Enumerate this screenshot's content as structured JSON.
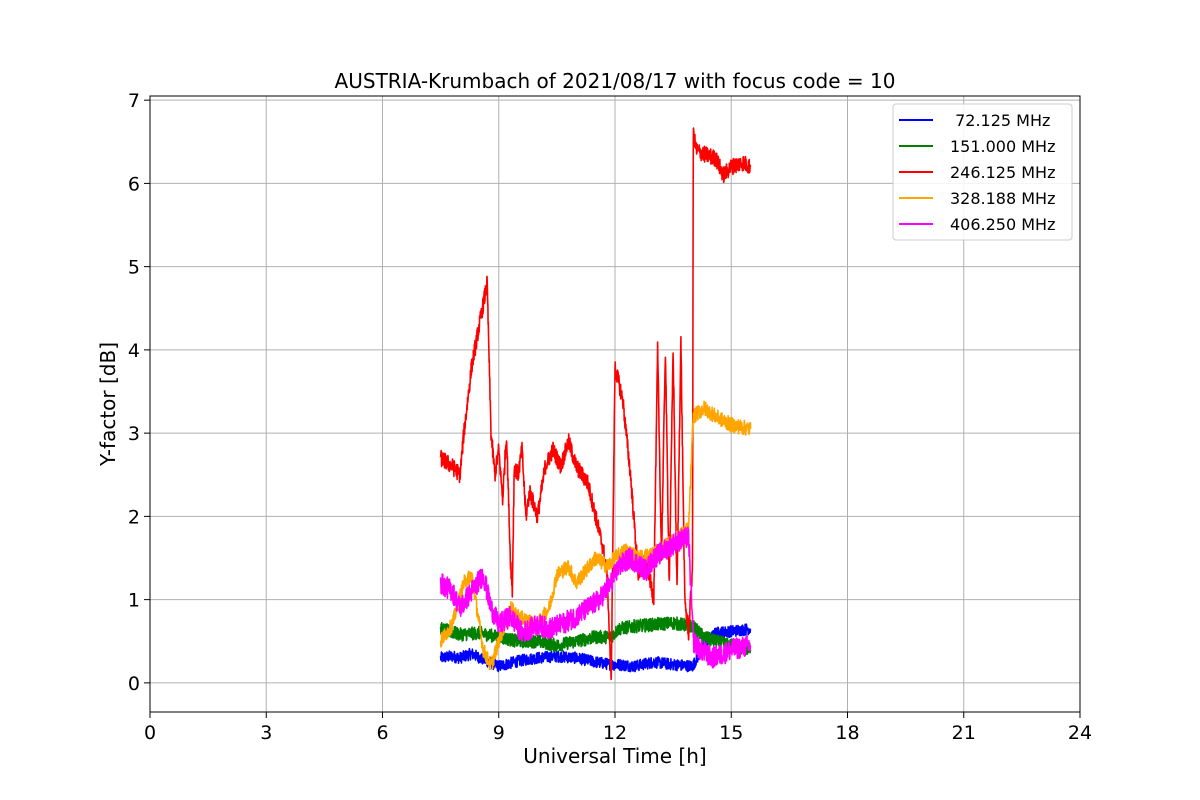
{
  "chart_data": {
    "type": "line",
    "title": "AUSTRIA-Krumbach of 2021/08/17 with focus code = 10",
    "xlabel": "Universal Time [h]",
    "ylabel": "Y-factor [dB]",
    "xlim": [
      0,
      24
    ],
    "ylim": [
      -0.35,
      7.05
    ],
    "xticks": [
      0,
      3,
      6,
      9,
      12,
      15,
      18,
      21,
      24
    ],
    "yticks": [
      0,
      1,
      2,
      3,
      4,
      5,
      6,
      7
    ],
    "grid": true,
    "legend_position": "top-right",
    "series": [
      {
        "name": " 72.125 MHz",
        "color": "#0000ff",
        "noise": 0.07,
        "x": [
          7.5,
          7.8,
          8.0,
          8.3,
          8.6,
          9.0,
          9.4,
          9.7,
          10.0,
          10.5,
          11.0,
          11.5,
          11.9,
          12.1,
          12.5,
          13.0,
          13.5,
          14.0,
          14.3,
          14.6,
          15.0,
          15.5
        ],
        "y": [
          0.3,
          0.32,
          0.3,
          0.35,
          0.28,
          0.2,
          0.25,
          0.28,
          0.3,
          0.32,
          0.3,
          0.25,
          0.22,
          0.22,
          0.2,
          0.25,
          0.22,
          0.2,
          0.45,
          0.6,
          0.62,
          0.65
        ]
      },
      {
        "name": "151.000 MHz",
        "color": "#008000",
        "noise": 0.08,
        "x": [
          7.5,
          8.0,
          8.5,
          9.0,
          9.5,
          10.0,
          10.5,
          11.0,
          11.5,
          11.9,
          12.1,
          12.5,
          13.0,
          13.5,
          14.0,
          14.3,
          14.6,
          15.0,
          15.5
        ],
        "y": [
          0.65,
          0.58,
          0.6,
          0.55,
          0.5,
          0.5,
          0.45,
          0.5,
          0.55,
          0.55,
          0.65,
          0.68,
          0.7,
          0.72,
          0.68,
          0.55,
          0.5,
          0.45,
          0.4
        ]
      },
      {
        "name": "246.125 MHz",
        "color": "#ff0000",
        "noise": 0.1,
        "x": [
          7.5,
          7.8,
          8.0,
          8.1,
          8.3,
          8.5,
          8.7,
          8.8,
          8.9,
          9.0,
          9.1,
          9.2,
          9.3,
          9.35,
          9.4,
          9.5,
          9.6,
          9.7,
          9.8,
          10.0,
          10.2,
          10.4,
          10.6,
          10.8,
          11.0,
          11.3,
          11.5,
          11.7,
          11.8,
          11.9,
          12.0,
          12.2,
          12.4,
          12.6,
          12.8,
          13.0,
          13.1,
          13.2,
          13.3,
          13.4,
          13.5,
          13.6,
          13.7,
          13.8,
          13.9,
          14.0,
          14.02,
          14.1,
          14.3,
          14.6,
          14.8,
          15.0,
          15.3,
          15.5
        ],
        "y": [
          2.7,
          2.6,
          2.5,
          3.0,
          3.8,
          4.3,
          4.8,
          3.0,
          2.5,
          2.8,
          2.2,
          3.0,
          1.5,
          1.1,
          2.6,
          2.5,
          2.8,
          2.0,
          2.3,
          2.0,
          2.6,
          2.8,
          2.6,
          2.9,
          2.6,
          2.4,
          2.0,
          1.6,
          1.3,
          0.0,
          3.8,
          3.4,
          2.5,
          1.3,
          1.5,
          1.0,
          4.0,
          1.5,
          4.0,
          1.2,
          4.0,
          1.1,
          4.1,
          1.0,
          0.6,
          1.4,
          6.6,
          6.4,
          6.35,
          6.3,
          6.1,
          6.2,
          6.25,
          6.2
        ]
      },
      {
        "name": "328.188 MHz",
        "color": "#ffa500",
        "noise": 0.09,
        "x": [
          7.5,
          7.8,
          8.1,
          8.3,
          8.6,
          8.8,
          9.0,
          9.3,
          9.5,
          9.7,
          10.0,
          10.3,
          10.5,
          10.8,
          11.0,
          11.5,
          11.8,
          12.0,
          12.3,
          12.6,
          13.0,
          13.5,
          13.9,
          14.02,
          14.3,
          14.6,
          15.0,
          15.5
        ],
        "y": [
          0.5,
          0.7,
          1.2,
          1.3,
          0.4,
          0.2,
          0.5,
          0.9,
          0.8,
          0.75,
          0.7,
          0.9,
          1.3,
          1.4,
          1.2,
          1.5,
          1.4,
          1.5,
          1.6,
          1.5,
          1.55,
          1.7,
          1.85,
          3.2,
          3.3,
          3.2,
          3.1,
          3.05
        ]
      },
      {
        "name": "406.250 MHz",
        "color": "#ff00ff",
        "noise": 0.13,
        "x": [
          7.5,
          7.8,
          8.0,
          8.3,
          8.6,
          8.8,
          9.0,
          9.3,
          9.6,
          10.0,
          10.3,
          10.6,
          11.0,
          11.3,
          11.6,
          11.9,
          12.1,
          12.4,
          12.8,
          13.0,
          13.3,
          13.6,
          13.9,
          14.02,
          14.2,
          14.5,
          14.8,
          15.0,
          15.5
        ],
        "y": [
          1.2,
          1.1,
          0.9,
          1.1,
          1.3,
          0.9,
          0.7,
          0.8,
          0.6,
          0.7,
          0.65,
          0.7,
          0.8,
          0.9,
          1.0,
          1.2,
          1.4,
          1.5,
          1.35,
          1.5,
          1.6,
          1.7,
          1.75,
          0.5,
          0.4,
          0.3,
          0.35,
          0.4,
          0.45
        ]
      }
    ]
  }
}
